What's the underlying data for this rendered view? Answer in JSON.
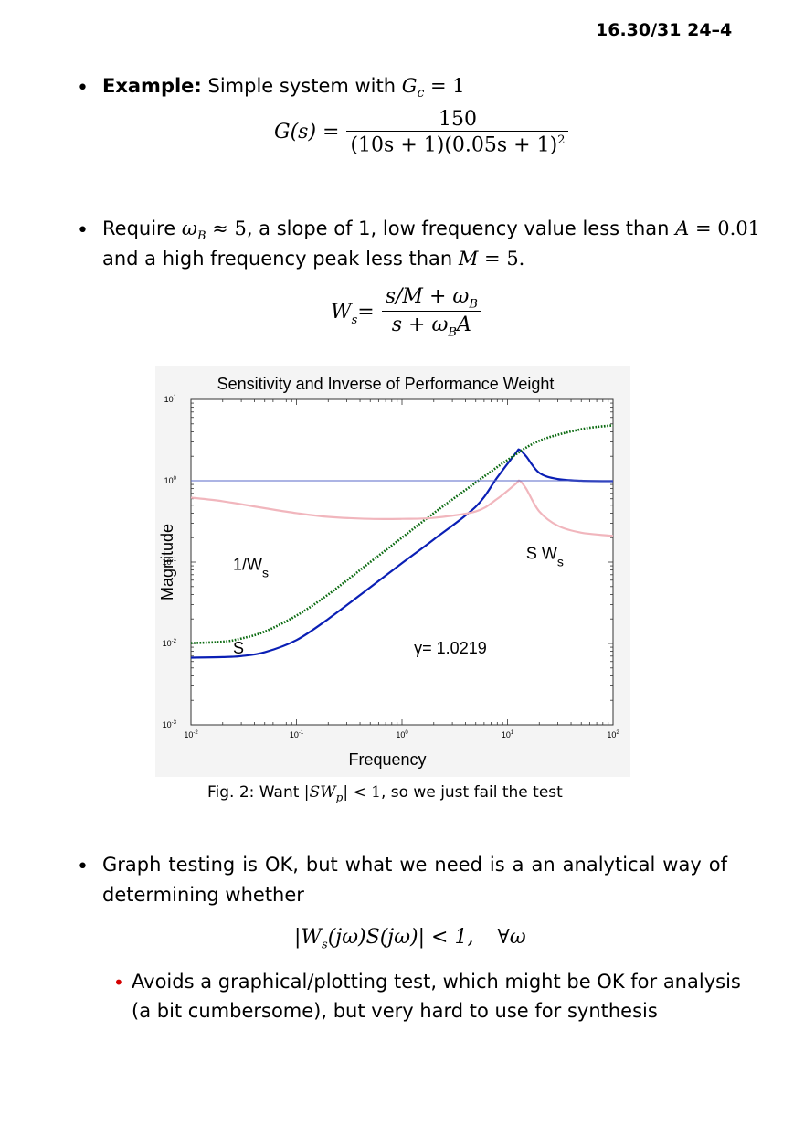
{
  "header": {
    "page_label": "16.30/31 24–4"
  },
  "example": {
    "bold_label": "Example:",
    "text": "Simple system with",
    "gc_math": "G",
    "gc_sub": "c",
    "gc_rest": " = 1"
  },
  "plant_eq": {
    "lhs": "G(s) =",
    "numerator": "150",
    "denominator": "(10s + 1)(0.05s + 1)",
    "den_exp": "2"
  },
  "requirement": {
    "line1_a": "Require ",
    "omega_b": "ω",
    "omega_b_sub": "B",
    "line1_b": " ≈ 5",
    "line1_c": ", a slope of 1, low frequency value less than ",
    "line1_d": "A",
    "line1_e": " = 0.01",
    "line2_a": "and a high frequency peak less than ",
    "line2_b": "M",
    "line2_c": " = 5."
  },
  "weight_eq": {
    "lhs_W": "W",
    "lhs_sub": "s",
    "lhs_eq": " =",
    "numerator": "s/M + ω",
    "numerator_sub": "B",
    "denominator": "s + ω",
    "denominator_sub": "B",
    "denominator_tail": "A"
  },
  "chart_data": {
    "type": "line",
    "title": "Sensitivity and Inverse of Performance Weight",
    "xlabel": "Frequency",
    "ylabel": "Magnitude",
    "xscale": "log",
    "yscale": "log",
    "xlim": [
      0.01,
      100
    ],
    "ylim": [
      0.001,
      10
    ],
    "x_ticks": [
      "10-2",
      "10-1",
      "100",
      "101",
      "102"
    ],
    "y_ticks": [
      "10-3",
      "10-2",
      "10-1",
      "100",
      "101"
    ],
    "grid": false,
    "annotations": [
      {
        "text": "1/W",
        "sub": "s",
        "x": 0.025,
        "y": 0.08
      },
      {
        "text": "S",
        "x": 0.025,
        "y": 0.0075
      },
      {
        "text": "S W",
        "sub": "s",
        "x": 15,
        "y": 0.11
      },
      {
        "text": "γ= 1.0219",
        "x": 1.3,
        "y": 0.0075
      }
    ],
    "series": [
      {
        "color": "#0a1fb5",
        "style": "solid",
        "x": [
          0.01,
          0.02,
          0.03,
          0.05,
          0.1,
          0.2,
          0.5,
          1,
          2,
          5,
          8,
          12,
          13,
          15,
          20,
          30,
          50,
          100
        ],
        "y": [
          0.0067,
          0.0068,
          0.007,
          0.0078,
          0.011,
          0.02,
          0.049,
          0.097,
          0.19,
          0.48,
          1.1,
          2.2,
          2.4,
          2.0,
          1.25,
          1.05,
          1.0,
          0.99
        ]
      },
      {
        "color": "#0a6a10",
        "style": "dotted",
        "x": [
          0.01,
          0.02,
          0.03,
          0.05,
          0.1,
          0.2,
          0.5,
          1,
          2,
          5,
          10,
          20,
          50,
          100
        ],
        "y": [
          0.0101,
          0.0105,
          0.0115,
          0.014,
          0.022,
          0.04,
          0.1,
          0.2,
          0.4,
          0.95,
          1.8,
          3.1,
          4.3,
          4.8
        ]
      },
      {
        "color": "#f1b6bd",
        "style": "solid",
        "x": [
          0.01,
          0.02,
          0.05,
          0.1,
          0.2,
          0.5,
          1,
          2,
          5,
          8,
          12,
          13,
          15,
          20,
          30,
          50,
          100
        ],
        "y": [
          0.62,
          0.56,
          0.46,
          0.4,
          0.36,
          0.34,
          0.34,
          0.35,
          0.42,
          0.6,
          0.92,
          1.0,
          0.8,
          0.42,
          0.28,
          0.23,
          0.21
        ]
      },
      {
        "color": "#5a68c8",
        "style": "thin",
        "x": [
          0.01,
          100
        ],
        "y": [
          1,
          1
        ]
      }
    ]
  },
  "caption": {
    "prefix": "Fig. 2: Want ",
    "math": "|SW",
    "math_sub": "p",
    "math_tail": "| < 1",
    "suffix": ", so we just fail the test"
  },
  "graph_testing": {
    "line1": "Graph testing is OK, but what we need is a an analytical way of",
    "line2": "determining whether"
  },
  "test_eq": {
    "text_a": "|W",
    "sub_a": "s",
    "text_b": "(jω)S(jω)| < 1,",
    "forall": "∀ω"
  },
  "sub_bullet": {
    "line1": "Avoids a graphical/plotting test, which might be OK for analysis",
    "line2": "(a bit cumbersome), but very hard to use for synthesis"
  }
}
